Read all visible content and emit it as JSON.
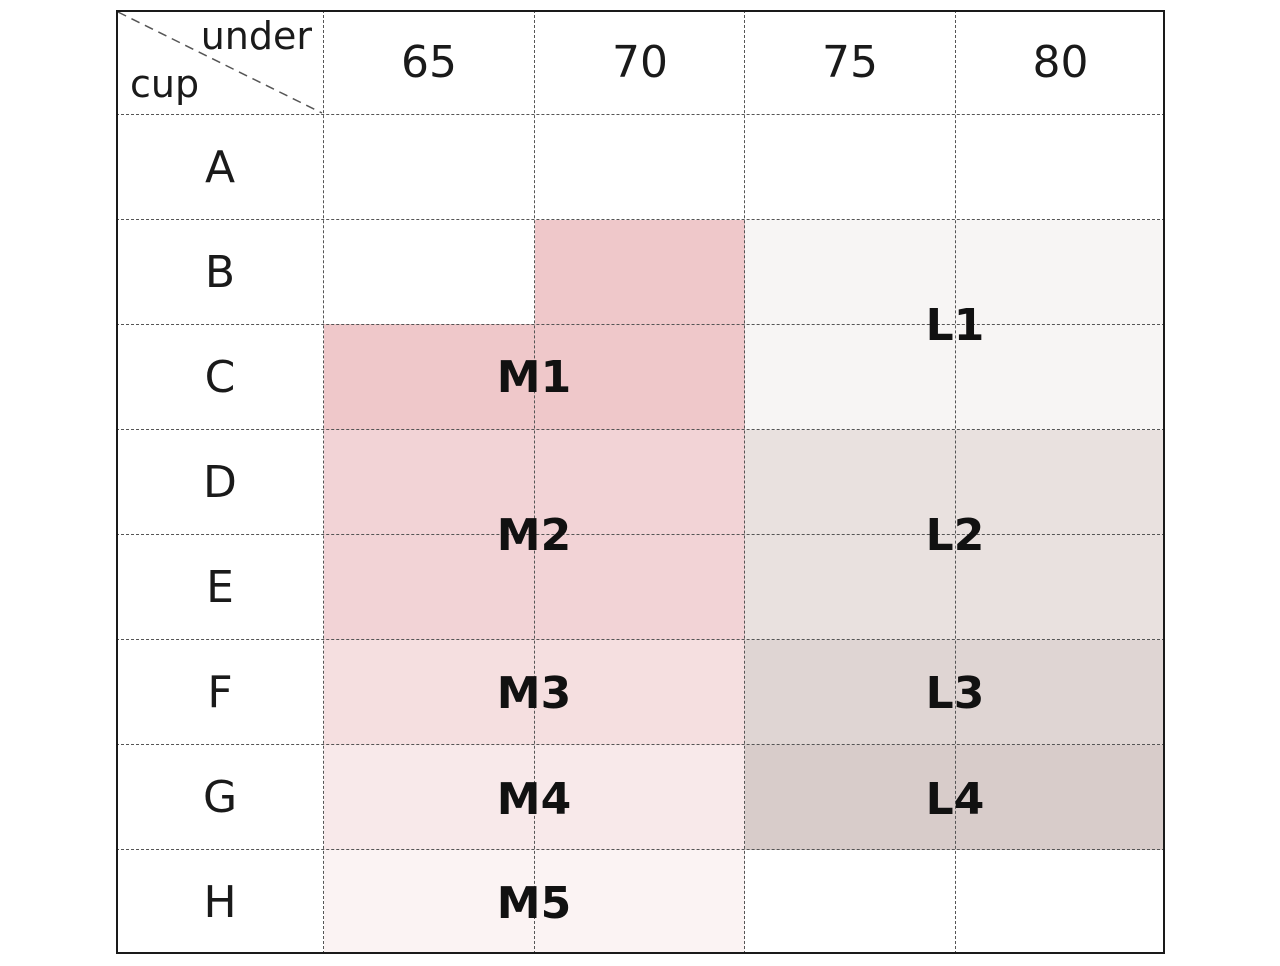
{
  "header": {
    "under_label": "under",
    "cup_label": "cup"
  },
  "under_sizes": [
    "65",
    "70",
    "75",
    "80"
  ],
  "cup_sizes": [
    "A",
    "B",
    "C",
    "D",
    "E",
    "F",
    "G",
    "H"
  ],
  "sizes": {
    "M1": "M1",
    "M2": "M2",
    "M3": "M3",
    "M4": "M4",
    "M5": "M5",
    "L1": "L1",
    "L2": "L2",
    "L3": "L3",
    "L4": "L4"
  },
  "colors": {
    "M1": "#efc8ca",
    "M2": "#f2d3d6",
    "M3": "#f5dfe0",
    "M4": "#f8e9ea",
    "M5": "#fbf3f3",
    "L1": "#f7f5f4",
    "L2": "#e9e1df",
    "L3": "#dfd5d3",
    "L4": "#d8ccca",
    "grid": "#555555",
    "border": "#1a1a1a"
  }
}
